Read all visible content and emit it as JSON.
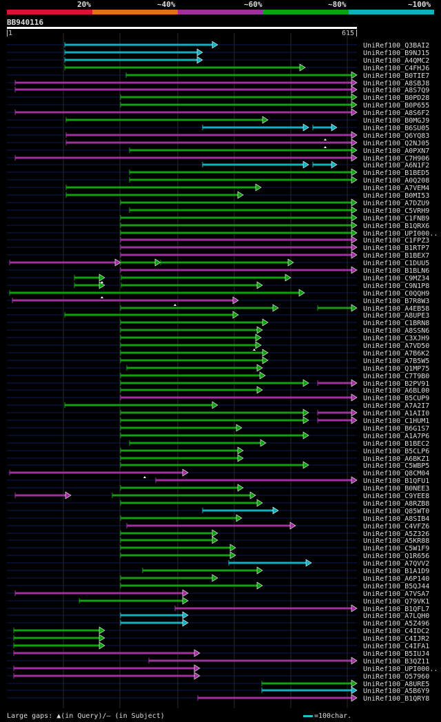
{
  "colors": {
    "very_low": "#dd1133",
    "low": "#e07020",
    "mid": "#a030a0",
    "high": "#10a010",
    "top": "#10b0c0",
    "row_line": "#0a1a55",
    "guide": "#2a2a2a"
  },
  "legend": [
    {
      "label": "20%",
      "color": "#dd1133"
    },
    {
      "label": "~40%",
      "color": "#e07020"
    },
    {
      "label": "~60%",
      "color": "#a030a0"
    },
    {
      "label": "~80%",
      "color": "#10a010"
    },
    {
      "label": "~100%",
      "color": "#10b0c0"
    }
  ],
  "query": {
    "name": "BB940116",
    "start": "1",
    "end": "615"
  },
  "hits": [
    {
      "name": "UniRef100_Q3BAI2",
      "segs": [
        {
          "s": 94,
          "e": 316,
          "c": "top"
        }
      ]
    },
    {
      "name": "UniRef100_B9NJ15",
      "segs": [
        {
          "s": 94,
          "e": 294,
          "c": "top"
        }
      ]
    },
    {
      "name": "UniRef100_A4QMC2",
      "segs": [
        {
          "s": 94,
          "e": 294,
          "c": "top"
        }
      ]
    },
    {
      "name": "UniRef100_C4FHJ6",
      "segs": [
        {
          "s": 94,
          "e": 443,
          "c": "high"
        }
      ]
    },
    {
      "name": "UniRef100_B0TIE7",
      "segs": [
        {
          "s": 183,
          "e": 518,
          "c": "high"
        }
      ]
    },
    {
      "name": "UniRef100_A8SBJ8",
      "segs": [
        {
          "s": 22,
          "e": 518,
          "c": "mid"
        }
      ]
    },
    {
      "name": "UniRef100_A8S7Q9",
      "segs": [
        {
          "s": 22,
          "e": 518,
          "c": "mid"
        }
      ]
    },
    {
      "name": "UniRef100_B0PD28",
      "segs": [
        {
          "s": 175,
          "e": 518,
          "c": "high"
        }
      ]
    },
    {
      "name": "UniRef100_B0P655",
      "segs": [
        {
          "s": 175,
          "e": 518,
          "c": "high"
        }
      ]
    },
    {
      "name": "UniRef100_A8S6F2",
      "segs": [
        {
          "s": 22,
          "e": 518,
          "c": "mid"
        }
      ]
    },
    {
      "name": "UniRef100_B0MGJ9",
      "segs": [
        {
          "s": 96,
          "e": 389,
          "c": "high"
        }
      ]
    },
    {
      "name": "UniRef100_B6SU05",
      "segs": [
        {
          "s": 294,
          "e": 448,
          "c": "top"
        },
        {
          "s": 454,
          "e": 489,
          "c": "top"
        }
      ]
    },
    {
      "name": "UniRef100_Q6YQ83",
      "segs": [
        {
          "s": 96,
          "e": 518,
          "c": "mid"
        }
      ]
    },
    {
      "name": "UniRef100_Q2NJ05",
      "segs": [
        {
          "s": 96,
          "e": 518,
          "c": "mid"
        }
      ]
    },
    {
      "name": "UniRef100_A0PXN7",
      "segs": [
        {
          "s": 188,
          "e": 518,
          "c": "high"
        }
      ]
    },
    {
      "name": "UniRef100_C7H906",
      "segs": [
        {
          "s": 22,
          "e": 518,
          "c": "mid"
        }
      ]
    },
    {
      "name": "UniRef100_A6N1F2",
      "segs": [
        {
          "s": 294,
          "e": 448,
          "c": "top"
        },
        {
          "s": 454,
          "e": 489,
          "c": "top"
        }
      ]
    },
    {
      "name": "UniRef100_B1BED5",
      "segs": [
        {
          "s": 188,
          "e": 518,
          "c": "high"
        }
      ]
    },
    {
      "name": "UniRef100_A0Q208",
      "segs": [
        {
          "s": 188,
          "e": 518,
          "c": "high"
        }
      ]
    },
    {
      "name": "UniRef100_A7VEM4",
      "segs": [
        {
          "s": 96,
          "e": 379,
          "c": "high"
        }
      ]
    },
    {
      "name": "UniRef100_B0MI53",
      "segs": [
        {
          "s": 96,
          "e": 353,
          "c": "high"
        }
      ]
    },
    {
      "name": "UniRef100_A7DZU9",
      "segs": [
        {
          "s": 175,
          "e": 518,
          "c": "high"
        }
      ]
    },
    {
      "name": "UniRef100_C5VRH9",
      "segs": [
        {
          "s": 188,
          "e": 518,
          "c": "high"
        }
      ]
    },
    {
      "name": "UniRef100_C1FNB9",
      "segs": [
        {
          "s": 175,
          "e": 518,
          "c": "high"
        }
      ]
    },
    {
      "name": "UniRef100_B1QRX6",
      "segs": [
        {
          "s": 175,
          "e": 518,
          "c": "high"
        }
      ]
    },
    {
      "name": "UniRef100_UPI000..",
      "segs": [
        {
          "s": 175,
          "e": 518,
          "c": "high"
        }
      ]
    },
    {
      "name": "UniRef100_C1FPZ3",
      "segs": [
        {
          "s": 175,
          "e": 518,
          "c": "mid"
        }
      ]
    },
    {
      "name": "UniRef100_B1RTP7",
      "segs": [
        {
          "s": 175,
          "e": 518,
          "c": "mid"
        }
      ]
    },
    {
      "name": "UniRef100_B1BEX7",
      "segs": [
        {
          "s": 175,
          "e": 518,
          "c": "mid"
        }
      ]
    },
    {
      "name": "UniRef100_C1DUU5",
      "segs": [
        {
          "s": 14,
          "e": 175,
          "c": "mid"
        },
        {
          "s": 175,
          "e": 233,
          "c": "high"
        },
        {
          "s": 233,
          "e": 426,
          "c": "high"
        }
      ]
    },
    {
      "name": "UniRef100_B1BLN6",
      "segs": [
        {
          "s": 175,
          "e": 518,
          "c": "mid"
        }
      ]
    },
    {
      "name": "UniRef100_C9MZ34",
      "segs": [
        {
          "s": 108,
          "e": 152,
          "c": "high"
        },
        {
          "s": 176,
          "e": 422,
          "c": "high"
        }
      ]
    },
    {
      "name": "UniRef100_C9N1P8",
      "segs": [
        {
          "s": 108,
          "e": 152,
          "c": "high"
        },
        {
          "s": 176,
          "e": 381,
          "c": "high"
        }
      ]
    },
    {
      "name": "UniRef100_C0QQH9",
      "segs": [
        {
          "s": 14,
          "e": 442,
          "c": "high"
        }
      ]
    },
    {
      "name": "UniRef100_B7R8W3",
      "segs": [
        {
          "s": 18,
          "e": 346,
          "c": "mid"
        }
      ]
    },
    {
      "name": "UniRef100_A4EB58",
      "segs": [
        {
          "s": 175,
          "e": 404,
          "c": "high"
        },
        {
          "s": 461,
          "e": 518,
          "c": "high"
        }
      ]
    },
    {
      "name": "UniRef100_A8UPE3",
      "segs": [
        {
          "s": 94,
          "e": 346,
          "c": "high"
        }
      ]
    },
    {
      "name": "UniRef100_C1BRN8",
      "segs": [
        {
          "s": 175,
          "e": 389,
          "c": "high"
        }
      ]
    },
    {
      "name": "UniRef100_A8SSN6",
      "segs": [
        {
          "s": 175,
          "e": 381,
          "c": "high"
        }
      ]
    },
    {
      "name": "UniRef100_C3XJH9",
      "segs": [
        {
          "s": 175,
          "e": 379,
          "c": "high"
        }
      ]
    },
    {
      "name": "UniRef100_A7VD50",
      "segs": [
        {
          "s": 175,
          "e": 379,
          "c": "high"
        }
      ]
    },
    {
      "name": "UniRef100_A7B6K2",
      "segs": [
        {
          "s": 175,
          "e": 389,
          "c": "high"
        }
      ]
    },
    {
      "name": "UniRef100_A7B5W5",
      "segs": [
        {
          "s": 175,
          "e": 389,
          "c": "high"
        }
      ]
    },
    {
      "name": "UniRef100_Q1MP75",
      "segs": [
        {
          "s": 184,
          "e": 381,
          "c": "high"
        }
      ]
    },
    {
      "name": "UniRef100_C7T9B0",
      "segs": [
        {
          "s": 175,
          "e": 385,
          "c": "high"
        }
      ]
    },
    {
      "name": "UniRef100_B2PV91",
      "segs": [
        {
          "s": 175,
          "e": 448,
          "c": "high"
        },
        {
          "s": 461,
          "e": 518,
          "c": "mid"
        }
      ]
    },
    {
      "name": "UniRef100_A6BL00",
      "segs": [
        {
          "s": 175,
          "e": 381,
          "c": "high"
        }
      ]
    },
    {
      "name": "UniRef100_B5CUP9",
      "segs": [
        {
          "s": 175,
          "e": 518,
          "c": "mid"
        }
      ]
    },
    {
      "name": "UniRef100_A7A2I7",
      "segs": [
        {
          "s": 94,
          "e": 316,
          "c": "high"
        }
      ]
    },
    {
      "name": "UniRef100_A1AII0",
      "segs": [
        {
          "s": 175,
          "e": 448,
          "c": "high"
        },
        {
          "s": 461,
          "e": 518,
          "c": "mid"
        }
      ]
    },
    {
      "name": "UniRef100_C1HUM1",
      "segs": [
        {
          "s": 175,
          "e": 448,
          "c": "high"
        },
        {
          "s": 461,
          "e": 518,
          "c": "mid"
        }
      ]
    },
    {
      "name": "UniRef100_B6G1S7",
      "segs": [
        {
          "s": 175,
          "e": 351,
          "c": "high"
        }
      ]
    },
    {
      "name": "UniRef100_A1A7P6",
      "segs": [
        {
          "s": 175,
          "e": 448,
          "c": "high"
        }
      ]
    },
    {
      "name": "UniRef100_B1BEC2",
      "segs": [
        {
          "s": 188,
          "e": 386,
          "c": "high"
        }
      ]
    },
    {
      "name": "UniRef100_B5CLP6",
      "segs": [
        {
          "s": 175,
          "e": 353,
          "c": "high"
        }
      ]
    },
    {
      "name": "UniRef100_A6BKZ1",
      "segs": [
        {
          "s": 175,
          "e": 353,
          "c": "high"
        }
      ]
    },
    {
      "name": "UniRef100_C5WBP5",
      "segs": [
        {
          "s": 175,
          "e": 448,
          "c": "high"
        }
      ]
    },
    {
      "name": "UniRef100_Q8CM04",
      "segs": [
        {
          "s": 14,
          "e": 273,
          "c": "mid"
        }
      ]
    },
    {
      "name": "UniRef100_B1QFU1",
      "segs": [
        {
          "s": 226,
          "e": 518,
          "c": "mid"
        }
      ]
    },
    {
      "name": "UniRef100_B0NEE3",
      "segs": [
        {
          "s": 175,
          "e": 353,
          "c": "high"
        }
      ]
    },
    {
      "name": "UniRef100_C9YEE8",
      "segs": [
        {
          "s": 22,
          "e": 103,
          "c": "mid"
        },
        {
          "s": 163,
          "e": 371,
          "c": "high"
        }
      ]
    },
    {
      "name": "UniRef100_A8RZB8",
      "segs": [
        {
          "s": 175,
          "e": 381,
          "c": "high"
        }
      ]
    },
    {
      "name": "UniRef100_Q85WT0",
      "segs": [
        {
          "s": 294,
          "e": 404,
          "c": "top"
        }
      ]
    },
    {
      "name": "UniRef100_A8SIB4",
      "segs": [
        {
          "s": 175,
          "e": 351,
          "c": "high"
        }
      ]
    },
    {
      "name": "UniRef100_C4VFZ6",
      "segs": [
        {
          "s": 184,
          "e": 429,
          "c": "mid"
        }
      ]
    },
    {
      "name": "UniRef100_A5Z326",
      "segs": [
        {
          "s": 175,
          "e": 316,
          "c": "high"
        }
      ]
    },
    {
      "name": "UniRef100_A5KR88",
      "segs": [
        {
          "s": 175,
          "e": 316,
          "c": "high"
        }
      ]
    },
    {
      "name": "UniRef100_C5W1F9",
      "segs": [
        {
          "s": 175,
          "e": 342,
          "c": "high"
        }
      ]
    },
    {
      "name": "UniRef100_Q1R656",
      "segs": [
        {
          "s": 175,
          "e": 342,
          "c": "high"
        }
      ]
    },
    {
      "name": "UniRef100_A7QVV2",
      "segs": [
        {
          "s": 332,
          "e": 452,
          "c": "top"
        }
      ]
    },
    {
      "name": "UniRef100_B1A1D9",
      "segs": [
        {
          "s": 207,
          "e": 381,
          "c": "high"
        }
      ]
    },
    {
      "name": "UniRef100_A6P140",
      "segs": [
        {
          "s": 175,
          "e": 316,
          "c": "high"
        }
      ]
    },
    {
      "name": "UniRef100_B5QJ44",
      "segs": [
        {
          "s": 175,
          "e": 381,
          "c": "high"
        }
      ]
    },
    {
      "name": "UniRef100_A7VSA7",
      "segs": [
        {
          "s": 22,
          "e": 273,
          "c": "mid"
        }
      ]
    },
    {
      "name": "UniRef100_Q79VK1",
      "segs": [
        {
          "s": 115,
          "e": 273,
          "c": "high"
        }
      ]
    },
    {
      "name": "UniRef100_B1QFL7",
      "segs": [
        {
          "s": 254,
          "e": 518,
          "c": "mid"
        }
      ]
    },
    {
      "name": "UniRef100_A7LQH0",
      "segs": [
        {
          "s": 175,
          "e": 273,
          "c": "top"
        }
      ]
    },
    {
      "name": "UniRef100_A5Z496",
      "segs": [
        {
          "s": 175,
          "e": 273,
          "c": "top"
        }
      ]
    },
    {
      "name": "UniRef100_C4IDC2",
      "segs": [
        {
          "s": 20,
          "e": 152,
          "c": "high"
        }
      ]
    },
    {
      "name": "UniRef100_C4IJR2",
      "segs": [
        {
          "s": 20,
          "e": 152,
          "c": "high"
        }
      ]
    },
    {
      "name": "UniRef100_C4IFA1",
      "segs": [
        {
          "s": 20,
          "e": 152,
          "c": "high"
        }
      ]
    },
    {
      "name": "UniRef100_B5IUJ4",
      "segs": [
        {
          "s": 20,
          "e": 290,
          "c": "mid"
        }
      ]
    },
    {
      "name": "UniRef100_B3QZ11",
      "segs": [
        {
          "s": 216,
          "e": 518,
          "c": "mid"
        }
      ]
    },
    {
      "name": "UniRef100_UPI000..",
      "segs": [
        {
          "s": 20,
          "e": 290,
          "c": "mid"
        }
      ]
    },
    {
      "name": "UniRef100_O57960",
      "segs": [
        {
          "s": 20,
          "e": 290,
          "c": "mid"
        }
      ]
    },
    {
      "name": "UniRef100_A8URE5",
      "segs": [
        {
          "s": 380,
          "e": 518,
          "c": "high"
        }
      ]
    },
    {
      "name": "UniRef100_A5B6Y9",
      "segs": [
        {
          "s": 380,
          "e": 518,
          "c": "top"
        }
      ]
    },
    {
      "name": "UniRef100_B1QRY8",
      "segs": [
        {
          "s": 287,
          "e": 518,
          "c": "mid"
        }
      ]
    }
  ],
  "gap_marks": [
    {
      "row": 12,
      "x": 472
    },
    {
      "row": 13,
      "x": 472
    },
    {
      "row": 31,
      "x": 148
    },
    {
      "row": 33,
      "x": 148
    },
    {
      "row": 34,
      "x": 254
    },
    {
      "row": 40,
      "x": 369
    },
    {
      "row": 57,
      "x": 210
    }
  ],
  "footer": {
    "gaps_text": "Large gaps: ▲(in Query)/– (in Subject)",
    "scale_text": "=100char."
  }
}
